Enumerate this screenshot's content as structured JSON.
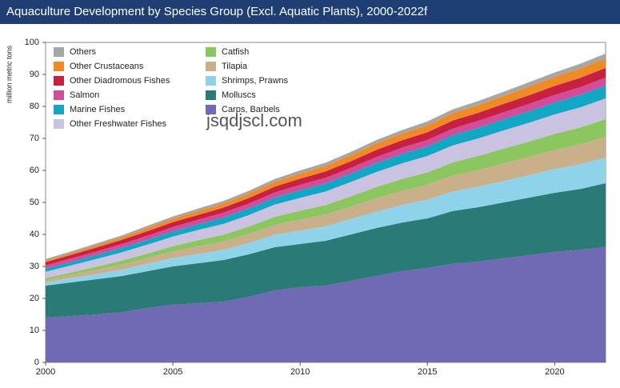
{
  "chart_data": {
    "type": "stacked-area",
    "title": "Aquaculture Development by Species Group (Excl. Aquatic Plants), 2000-2022f",
    "y_label": "million metric tons",
    "watermark": "jsqdjscl.com",
    "x": [
      2000,
      2001,
      2002,
      2003,
      2004,
      2005,
      2006,
      2007,
      2008,
      2009,
      2010,
      2011,
      2012,
      2013,
      2014,
      2015,
      2016,
      2017,
      2018,
      2019,
      2020,
      2021,
      2022
    ],
    "xlim": [
      2000,
      2022
    ],
    "xticks": [
      2000,
      2005,
      2010,
      2015,
      2020
    ],
    "ylim": [
      0,
      100
    ],
    "yticks": [
      0,
      10,
      20,
      30,
      40,
      50,
      60,
      70,
      80,
      90,
      100
    ],
    "series": [
      {
        "name": "Carps, Barbels",
        "color": "#7069b4",
        "values": [
          14,
          14.5,
          15,
          15.7,
          17,
          18,
          18.5,
          19,
          20.5,
          22.5,
          23.5,
          24,
          25.5,
          27,
          28.5,
          29.5,
          30.8,
          31.5,
          32.5,
          33.5,
          34.5,
          35.2,
          36
        ]
      },
      {
        "name": "Molluscs",
        "color": "#2a7a78",
        "values": [
          10,
          10.5,
          11,
          11.3,
          11.5,
          12,
          12.5,
          13,
          13.3,
          13.5,
          13.5,
          14,
          14.5,
          15,
          15.2,
          15.5,
          16.5,
          17,
          17.5,
          18,
          18.5,
          19,
          20
        ]
      },
      {
        "name": "Shrimps, Prawns",
        "color": "#8fd3ea",
        "values": [
          1.0,
          1.3,
          1.6,
          2.0,
          2.3,
          2.6,
          2.9,
          3.2,
          3.5,
          3.9,
          4.2,
          4.5,
          4.8,
          5.1,
          5.5,
          5.8,
          6.1,
          6.4,
          6.7,
          7.0,
          7.4,
          7.7,
          8.0
        ]
      },
      {
        "name": "Tilapia",
        "color": "#c9b08a",
        "values": [
          0.8,
          1.1,
          1.3,
          1.6,
          1.8,
          2.1,
          2.4,
          2.6,
          2.9,
          3.1,
          3.4,
          3.7,
          3.9,
          4.2,
          4.4,
          4.7,
          5.0,
          5.2,
          5.5,
          5.7,
          6.0,
          6.2,
          6.5
        ]
      },
      {
        "name": "Catfish",
        "color": "#8cc661",
        "values": [
          0.5,
          0.7,
          1.0,
          1.2,
          1.4,
          1.6,
          1.9,
          2.1,
          2.3,
          2.5,
          2.8,
          3.0,
          3.2,
          3.5,
          3.7,
          3.9,
          4.1,
          4.4,
          4.6,
          4.8,
          5.0,
          5.3,
          5.5
        ]
      },
      {
        "name": "Other Freshwater Fishes",
        "color": "#c9c3e1",
        "values": [
          2.0,
          2.2,
          2.4,
          2.6,
          2.8,
          3.0,
          3.2,
          3.4,
          3.6,
          3.8,
          4.0,
          4.2,
          4.5,
          4.7,
          4.9,
          5.1,
          5.3,
          5.5,
          5.7,
          5.9,
          6.1,
          6.3,
          6.5
        ]
      },
      {
        "name": "Marine Fishes",
        "color": "#12a7c4",
        "values": [
          1.0,
          1.1,
          1.3,
          1.4,
          1.5,
          1.7,
          1.8,
          2.0,
          2.1,
          2.2,
          2.4,
          2.5,
          2.6,
          2.8,
          2.9,
          3.0,
          3.2,
          3.3,
          3.5,
          3.6,
          3.7,
          3.9,
          4.0
        ]
      },
      {
        "name": "Salmon",
        "color": "#d24c9a",
        "values": [
          1.0,
          1.1,
          1.1,
          1.2,
          1.3,
          1.3,
          1.4,
          1.5,
          1.5,
          1.6,
          1.7,
          1.8,
          1.8,
          1.9,
          2.0,
          2.0,
          2.1,
          2.2,
          2.2,
          2.3,
          2.4,
          2.4,
          2.5
        ]
      },
      {
        "name": "Other Diadromous Fishes",
        "color": "#c8203f",
        "values": [
          1.0,
          1.1,
          1.2,
          1.3,
          1.4,
          1.5,
          1.5,
          1.6,
          1.7,
          1.8,
          1.9,
          2.0,
          2.1,
          2.2,
          2.3,
          2.4,
          2.5,
          2.5,
          2.6,
          2.7,
          2.8,
          2.9,
          3.0
        ]
      },
      {
        "name": "Other Crustaceans",
        "color": "#f08a24",
        "values": [
          0.5,
          0.6,
          0.7,
          0.8,
          1.0,
          1.1,
          1.2,
          1.3,
          1.4,
          1.5,
          1.6,
          1.7,
          1.9,
          2.0,
          2.1,
          2.2,
          2.3,
          2.4,
          2.5,
          2.7,
          2.8,
          2.9,
          3.0
        ]
      },
      {
        "name": "Others",
        "color": "#a6a6a6",
        "values": [
          0.5,
          0.5,
          0.6,
          0.6,
          0.7,
          0.7,
          0.8,
          0.8,
          0.9,
          0.9,
          1.0,
          1.0,
          1.0,
          1.1,
          1.1,
          1.2,
          1.2,
          1.3,
          1.3,
          1.4,
          1.4,
          1.5,
          1.5
        ]
      }
    ]
  }
}
